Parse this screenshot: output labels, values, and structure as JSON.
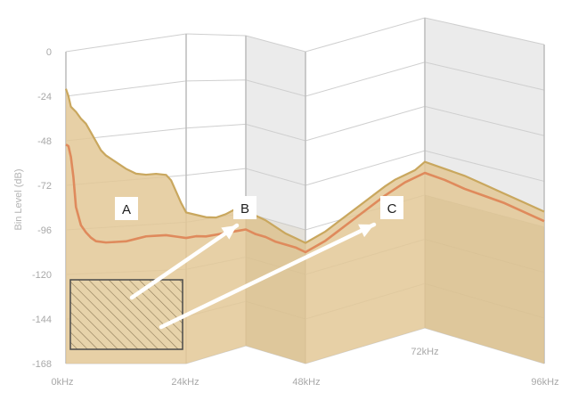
{
  "chart_data": {
    "type": "area",
    "ylabel": "Bin Level (dB)",
    "xlabel": "",
    "y_ticks": [
      "0",
      "-24",
      "-48",
      "-72",
      "-96",
      "-120",
      "-144",
      "-168"
    ],
    "x_ticks": [
      "0kHz",
      "24kHz",
      "48kHz",
      "72kHz",
      "96kHz"
    ],
    "ylim": [
      -168,
      0
    ],
    "xlim": [
      0,
      96
    ],
    "annotations": [
      "A",
      "B",
      "C"
    ],
    "series": [
      {
        "style": "filled-band",
        "color": "#c9a75e",
        "x": [
          0,
          0.5,
          1,
          2,
          3,
          4,
          5,
          6,
          7,
          8,
          10,
          12,
          14,
          16,
          18,
          20,
          21,
          22,
          23,
          24,
          26,
          28,
          30,
          32,
          34,
          36,
          38,
          40,
          42,
          44,
          46,
          48,
          52,
          56,
          60,
          64,
          66,
          68,
          70,
          72,
          76,
          80,
          84,
          88,
          92,
          96
        ],
        "y": [
          -20,
          -24,
          -30,
          -33,
          -37,
          -40,
          -45,
          -50,
          -55,
          -58,
          -62,
          -66,
          -69,
          -70,
          -70,
          -71,
          -74,
          -80,
          -86,
          -91,
          -93,
          -95,
          -96,
          -95,
          -93,
          -94,
          -96,
          -97,
          -99,
          -101,
          -102,
          -103,
          -100,
          -95,
          -90,
          -85,
          -83,
          -82,
          -81,
          -78,
          -79,
          -80,
          -82,
          -84,
          -86,
          -88
        ]
      },
      {
        "style": "line",
        "color": "#df8a5c",
        "x": [
          0,
          0.5,
          1,
          1.5,
          2,
          3,
          4,
          5,
          6,
          8,
          10,
          12,
          14,
          16,
          18,
          20,
          22,
          24,
          26,
          28,
          30,
          32,
          34,
          36,
          38,
          40,
          42,
          44,
          46,
          48,
          52,
          56,
          60,
          64,
          68,
          72,
          76,
          80,
          84,
          88,
          92,
          96
        ],
        "y": [
          -50,
          -51,
          -57,
          -68,
          -84,
          -94,
          -98,
          -101,
          -103,
          -104,
          -104,
          -104,
          -103,
          -102,
          -102,
          -102,
          -103,
          -104,
          -104,
          -105,
          -105,
          -105,
          -105,
          -105,
          -106,
          -106,
          -107,
          -107,
          -107,
          -108,
          -105,
          -100,
          -95,
          -90,
          -86,
          -84,
          -85,
          -87,
          -88,
          -89,
          -91,
          -93
        ]
      }
    ],
    "shading": {
      "from": 24,
      "to": 48,
      "note": "alternate panel shaded"
    },
    "grid": true
  }
}
